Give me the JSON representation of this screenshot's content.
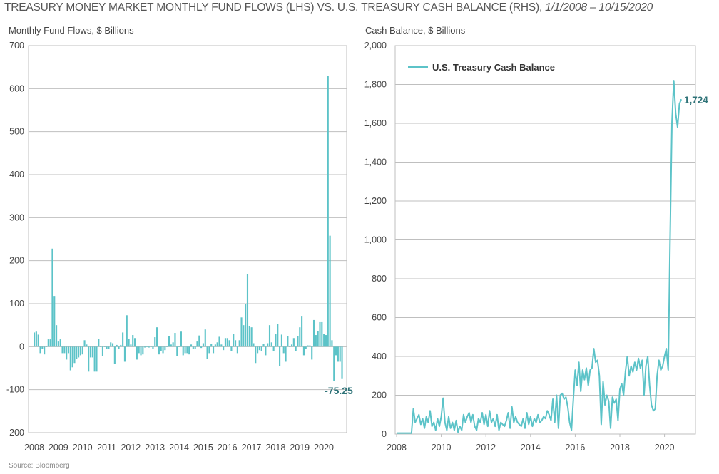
{
  "title": "TREASURY MONEY MARKET MONTHLY FUND FLOWS (LHS) VS. U.S. TREASURY CASH BALANCE (RHS),",
  "title_dates": "1/1/2008 – 10/15/2020",
  "source": "Source: Bloomberg",
  "colors": {
    "series": "#5cc3c8",
    "annotation": "#2f7378",
    "grid": "#bfbfbf"
  },
  "chart_data": [
    {
      "type": "bar",
      "ylabel": "Monthly Fund Flows, $ Billions",
      "ylim": [
        -200,
        700
      ],
      "yticks": [
        -200,
        -100,
        0,
        100,
        200,
        300,
        400,
        500,
        600,
        700
      ],
      "ytick_labels": [
        "-200",
        "-100",
        "0",
        "100",
        "200",
        "300",
        "400",
        "500",
        "600",
        "700"
      ],
      "xtick_labels": [
        "2008",
        "2009",
        "2010",
        "2011",
        "2012",
        "2013",
        "2014",
        "2015",
        "2016",
        "2017",
        "2018",
        "2019",
        "2020"
      ],
      "start": "2008-01",
      "frequency": "monthly",
      "annotation": "-75.25",
      "values": [
        33,
        35,
        28,
        -15,
        -5,
        -18,
        0,
        17,
        17,
        228,
        118,
        50,
        12,
        17,
        -15,
        -15,
        -30,
        -15,
        -55,
        -48,
        -38,
        -28,
        -25,
        -20,
        -18,
        15,
        5,
        -58,
        -25,
        -25,
        -58,
        -58,
        18,
        0,
        -22,
        0,
        -5,
        -5,
        10,
        8,
        -40,
        4,
        -5,
        4,
        33,
        -35,
        73,
        18,
        5,
        27,
        20,
        -30,
        -15,
        -20,
        -18,
        -2,
        0,
        -2,
        -1,
        -5,
        22,
        45,
        -18,
        -10,
        -15,
        -8,
        0,
        24,
        5,
        10,
        32,
        -22,
        0,
        35,
        -20,
        -15,
        -15,
        -18,
        5,
        -5,
        -5,
        12,
        26,
        -3,
        8,
        40,
        -28,
        -15,
        6,
        -15,
        5,
        10,
        23,
        5,
        -8,
        20,
        20,
        15,
        -10,
        30,
        15,
        -15,
        15,
        68,
        50,
        100,
        168,
        48,
        45,
        8,
        -38,
        -15,
        -8,
        -10,
        7,
        -20,
        8,
        50,
        10,
        -10,
        30,
        53,
        -45,
        28,
        -15,
        -35,
        25,
        0,
        5,
        20,
        -10,
        25,
        45,
        70,
        -20,
        -5,
        3,
        3,
        -30,
        62,
        27,
        37,
        57,
        57,
        30,
        27,
        630,
        258,
        15,
        -80,
        -20,
        -35,
        -35,
        -75.25
      ]
    },
    {
      "type": "line",
      "ylabel": "Cash Balance, $ Billions",
      "ylim": [
        0,
        2000
      ],
      "yticks": [
        0,
        200,
        400,
        600,
        800,
        1000,
        1200,
        1400,
        1600,
        1800,
        2000
      ],
      "ytick_labels": [
        "0",
        "200",
        "400",
        "600",
        "800",
        "1,000",
        "1,200",
        "1,400",
        "1,600",
        "1,800",
        "2,000"
      ],
      "xtick_labels": [
        "2008",
        "2010",
        "2012",
        "2014",
        "2016",
        "2018",
        "2020"
      ],
      "legend": "U.S. Treasury Cash Balance",
      "legend_position": "top-left",
      "annotation": "1,724",
      "start": "2008-01",
      "frequency": "monthly",
      "values": [
        5,
        5,
        5,
        5,
        5,
        5,
        5,
        5,
        5,
        130,
        60,
        80,
        100,
        50,
        80,
        30,
        90,
        60,
        120,
        40,
        60,
        20,
        80,
        40,
        90,
        185,
        60,
        20,
        90,
        30,
        60,
        20,
        70,
        10,
        40,
        20,
        100,
        60,
        90,
        110,
        60,
        100,
        40,
        20,
        80,
        60,
        110,
        50,
        100,
        40,
        120,
        60,
        80,
        40,
        100,
        20,
        60,
        50,
        40,
        70,
        110,
        30,
        140,
        60,
        90,
        60,
        50,
        40,
        80,
        30,
        110,
        50,
        90,
        40,
        80,
        60,
        100,
        60,
        70,
        90,
        80,
        120,
        100,
        70,
        180,
        60,
        200,
        30,
        200,
        210,
        180,
        190,
        140,
        60,
        20,
        180,
        330,
        250,
        370,
        220,
        330,
        280,
        340,
        250,
        330,
        340,
        440,
        370,
        380,
        300,
        50,
        270,
        150,
        200,
        170,
        30,
        190,
        160,
        180,
        70,
        230,
        260,
        200,
        320,
        400,
        300,
        350,
        320,
        370,
        330,
        390,
        340,
        380,
        200,
        350,
        400,
        250,
        150,
        120,
        130,
        300,
        380,
        330,
        350,
        400,
        440,
        330,
        1000,
        1600,
        1820,
        1650,
        1580,
        1700,
        1724
      ]
    }
  ]
}
